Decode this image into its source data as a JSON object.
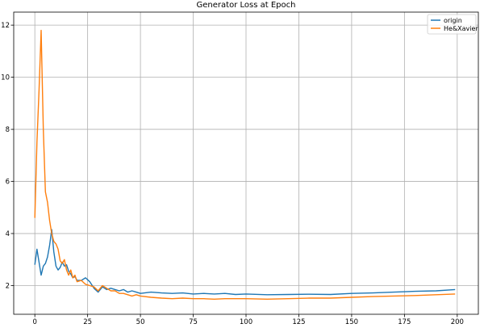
{
  "chart_data": {
    "type": "line",
    "title": "Generator Loss at Epoch",
    "xlabel": "",
    "ylabel": "",
    "xlim": [
      -10,
      210
    ],
    "ylim": [
      0.9,
      12.5
    ],
    "xticks": [
      0,
      25,
      50,
      75,
      100,
      125,
      150,
      175,
      200
    ],
    "yticks": [
      2,
      4,
      6,
      8,
      10,
      12
    ],
    "grid": true,
    "legend": "top-right",
    "series": [
      {
        "name": "origin",
        "color": "#1f77b4",
        "x": [
          0,
          1,
          2,
          3,
          4,
          5,
          6,
          7,
          8,
          9,
          10,
          11,
          12,
          13,
          14,
          15,
          16,
          17,
          18,
          19,
          20,
          22,
          24,
          26,
          28,
          30,
          32,
          34,
          36,
          38,
          40,
          42,
          44,
          46,
          48,
          50,
          55,
          60,
          65,
          70,
          75,
          80,
          85,
          90,
          95,
          100,
          110,
          120,
          130,
          140,
          150,
          160,
          170,
          180,
          190,
          199
        ],
        "y": [
          2.8,
          3.4,
          2.9,
          2.4,
          2.75,
          2.85,
          3.1,
          3.55,
          4.15,
          3.3,
          2.75,
          2.6,
          2.7,
          2.9,
          2.75,
          2.8,
          2.55,
          2.45,
          2.3,
          2.35,
          2.2,
          2.2,
          2.3,
          2.15,
          1.9,
          1.75,
          1.95,
          1.85,
          1.9,
          1.85,
          1.8,
          1.85,
          1.75,
          1.8,
          1.75,
          1.7,
          1.75,
          1.72,
          1.7,
          1.72,
          1.68,
          1.7,
          1.68,
          1.7,
          1.66,
          1.68,
          1.65,
          1.66,
          1.67,
          1.66,
          1.7,
          1.72,
          1.75,
          1.78,
          1.8,
          1.85
        ]
      },
      {
        "name": "He&Xavier",
        "color": "#ff7f0e",
        "x": [
          0,
          1,
          2,
          3,
          4,
          5,
          6,
          7,
          8,
          9,
          10,
          11,
          12,
          13,
          14,
          15,
          16,
          17,
          18,
          19,
          20,
          22,
          24,
          26,
          28,
          30,
          32,
          34,
          36,
          38,
          40,
          42,
          44,
          46,
          48,
          50,
          55,
          60,
          65,
          70,
          75,
          80,
          85,
          90,
          95,
          100,
          110,
          120,
          130,
          140,
          150,
          160,
          170,
          180,
          190,
          199
        ],
        "y": [
          4.6,
          7.5,
          9.5,
          11.8,
          8.0,
          5.6,
          5.2,
          4.5,
          4.0,
          3.7,
          3.6,
          3.4,
          2.95,
          2.85,
          3.0,
          2.6,
          2.4,
          2.6,
          2.3,
          2.4,
          2.15,
          2.2,
          2.05,
          2.0,
          1.95,
          1.8,
          2.0,
          1.9,
          1.8,
          1.8,
          1.7,
          1.7,
          1.65,
          1.6,
          1.65,
          1.6,
          1.55,
          1.52,
          1.5,
          1.52,
          1.5,
          1.5,
          1.48,
          1.5,
          1.5,
          1.5,
          1.48,
          1.5,
          1.52,
          1.52,
          1.55,
          1.58,
          1.6,
          1.62,
          1.65,
          1.68
        ]
      }
    ]
  }
}
